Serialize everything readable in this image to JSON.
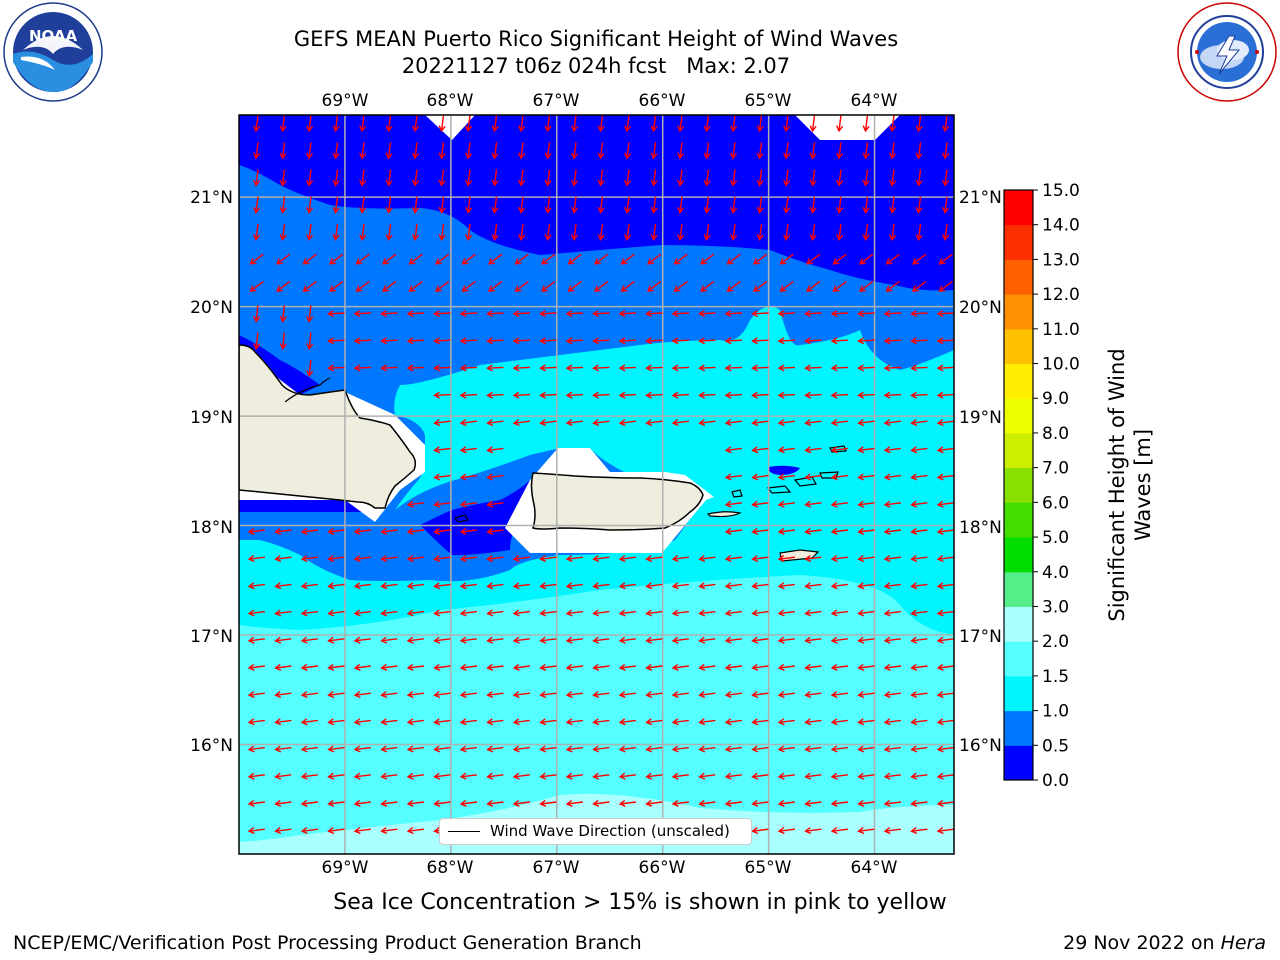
{
  "title": {
    "line1": "GEFS MEAN Puerto Rico Significant Height of Wind Waves",
    "line2": "20221127 t06z 024h fcst   Max: 2.07"
  },
  "logos": {
    "left": {
      "name": "noaa-logo",
      "text": "NOAA",
      "ring_text": "NATIONAL OCEANIC AND ATMOSPHERIC ADMINISTRATION · U.S. DEPARTMENT OF COMMERCE"
    },
    "right": {
      "name": "nws-logo",
      "ring_text": "NATIONAL WEATHER SERVICE"
    }
  },
  "map": {
    "lon_ticks_top": [
      "69°W",
      "68°W",
      "67°W",
      "66°W",
      "65°W",
      "64°W"
    ],
    "lon_ticks_bottom": [
      "69°W",
      "68°W",
      "67°W",
      "66°W",
      "65°W",
      "64°W"
    ],
    "lat_ticks_left": [
      "21°N",
      "20°N",
      "19°N",
      "18°N",
      "17°N",
      "16°N"
    ],
    "lat_ticks_right": [
      "21°N",
      "20°N",
      "19°N",
      "18°N",
      "17°N",
      "16°N"
    ],
    "extent": {
      "lon_min": -70.0,
      "lon_max": -63.25,
      "lat_min": 15.0,
      "lat_max": 21.75
    },
    "land_color": "#efedde",
    "arrow_color": "#ff0000"
  },
  "colorbar": {
    "title_line1": "Significant Height of Wind",
    "title_line2": "Waves [m]",
    "tick_labels": [
      "0.0",
      "0.5",
      "1.0",
      "1.5",
      "2.0",
      "3.0",
      "4.0",
      "5.0",
      "6.0",
      "7.0",
      "8.0",
      "9.0",
      "10.0",
      "11.0",
      "12.0",
      "13.0",
      "14.0",
      "15.0"
    ],
    "colors": [
      "#0000ff",
      "#0077ff",
      "#00f5ff",
      "#55ffff",
      "#aaffff",
      "#55ee88",
      "#00dd00",
      "#44dd00",
      "#88e000",
      "#ccee00",
      "#eeff00",
      "#ffee00",
      "#ffc000",
      "#ff9000",
      "#ff6000",
      "#ff3000",
      "#ff0000"
    ]
  },
  "legend": {
    "label": "Wind Wave Direction (unscaled)"
  },
  "sea_ice_note": "Sea Ice Concentration > 15% is shown in pink to yellow",
  "footer": {
    "left": "NCEP/EMC/Verification Post Processing Product Generation Branch",
    "right_prefix": "29 Nov 2022 on ",
    "right_italic": "Hera"
  },
  "chart_data": {
    "type": "heatmap",
    "title": "GEFS MEAN Puerto Rico Significant Height of Wind Waves",
    "subtitle": "20221127 t06z 024h fcst   Max: 2.07",
    "max_value": 2.07,
    "colorbar_label": "Significant Height of Wind Waves [m]",
    "levels": [
      0.0,
      0.5,
      1.0,
      1.5,
      2.0,
      3.0,
      4.0,
      5.0,
      6.0,
      7.0,
      8.0,
      9.0,
      10.0,
      11.0,
      12.0,
      13.0,
      14.0,
      15.0
    ],
    "xlim": [
      -70.0,
      -63.25
    ],
    "ylim": [
      15.0,
      21.75
    ],
    "legend": [
      "Wind Wave Direction (unscaled)"
    ],
    "zones": [
      {
        "range": "0.0-0.5",
        "where": "north of ~20.7°N; Mona Passage; south coast of Hispaniola"
      },
      {
        "range": "0.5-1.0",
        "where": "~19.5°N-20.7°N band; west of Puerto Rico"
      },
      {
        "range": "1.0-1.5",
        "where": "around Puerto Rico and ~17.3°N-19.5°N"
      },
      {
        "range": "1.5-2.0",
        "where": "~15.3°N-17.3°N"
      },
      {
        "range": "2.0-3.0",
        "where": "south edge near 15.2°N"
      }
    ]
  }
}
